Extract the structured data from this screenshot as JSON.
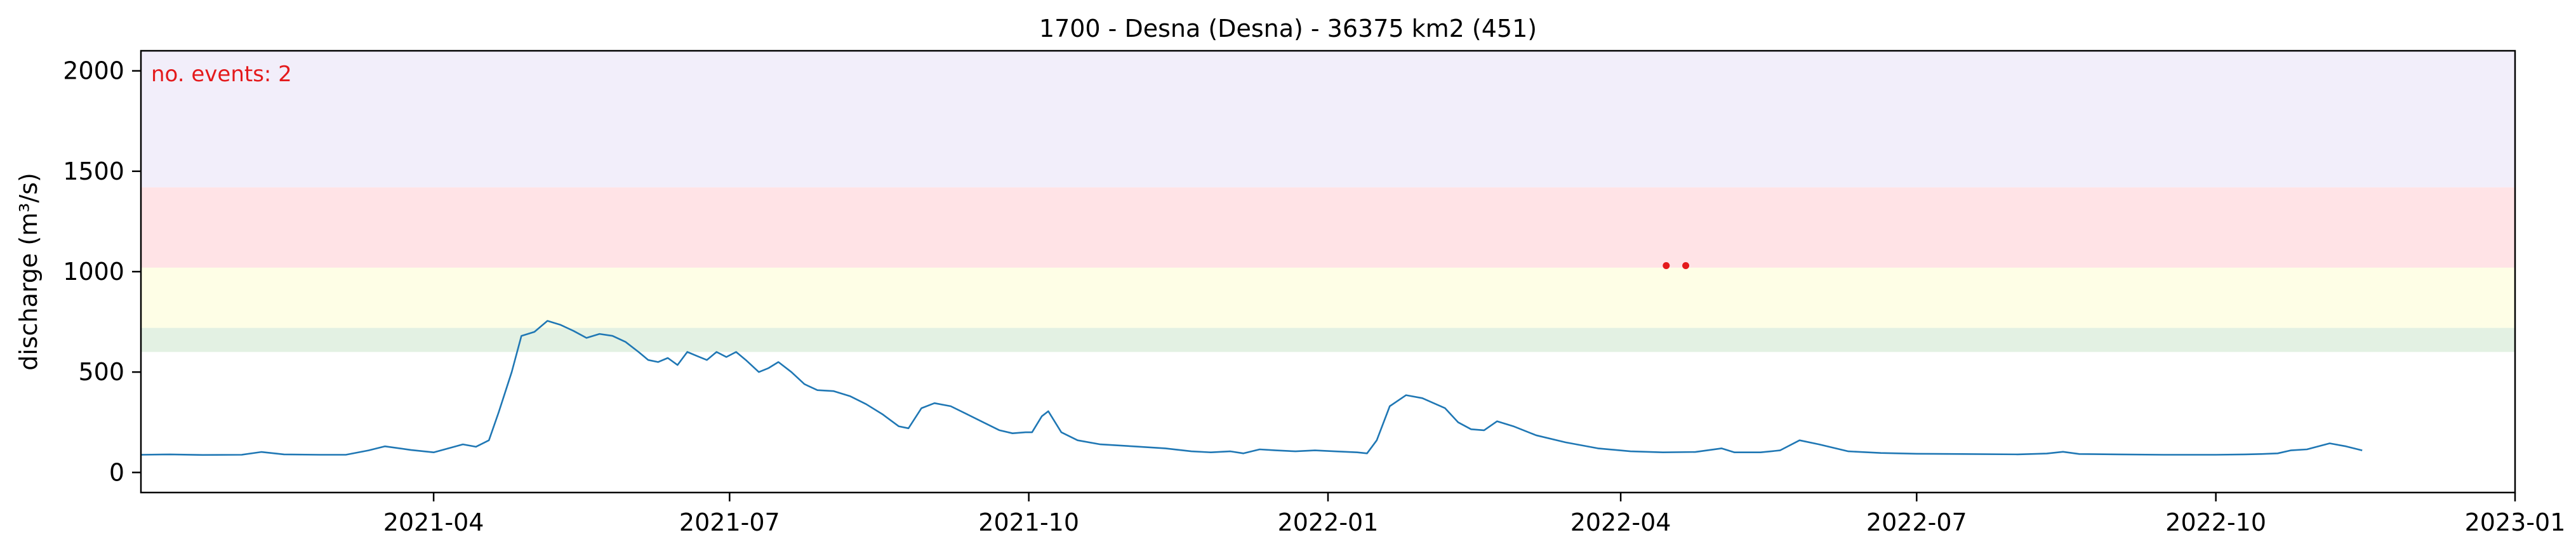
{
  "chart_data": {
    "type": "line",
    "title": "1700 - Desna (Desna) - 36375 km2 (451)",
    "xlabel": "",
    "ylabel": "discharge (m³/s)",
    "xlim": [
      "2021-01-01",
      "2023-01-01"
    ],
    "ylim": [
      -100,
      2100
    ],
    "x_ticks": [
      "2021-04",
      "2021-07",
      "2021-10",
      "2022-01",
      "2022-04",
      "2022-07",
      "2022-10",
      "2023-01"
    ],
    "y_ticks": [
      0,
      500,
      1000,
      1500,
      2000
    ],
    "grid": false,
    "annotation": "no. events: 2",
    "threshold_bands": [
      {
        "from": 600,
        "to": 720,
        "color": "#e3f1e3"
      },
      {
        "from": 720,
        "to": 1020,
        "color": "#fefee6"
      },
      {
        "from": 1020,
        "to": 1420,
        "color": "#ffe3e6"
      },
      {
        "from": 1420,
        "to": 2100,
        "color": "#f2eefa"
      }
    ],
    "series": [
      {
        "color": "#1f77b4",
        "points": [
          [
            "2021-01-01",
            88
          ],
          [
            "2021-01-10",
            90
          ],
          [
            "2021-01-20",
            87
          ],
          [
            "2021-02-01",
            88
          ],
          [
            "2021-02-07",
            102
          ],
          [
            "2021-02-14",
            90
          ],
          [
            "2021-02-25",
            88
          ],
          [
            "2021-03-05",
            88
          ],
          [
            "2021-03-12",
            110
          ],
          [
            "2021-03-17",
            130
          ],
          [
            "2021-03-25",
            112
          ],
          [
            "2021-04-01",
            100
          ],
          [
            "2021-04-06",
            122
          ],
          [
            "2021-04-10",
            140
          ],
          [
            "2021-04-14",
            128
          ],
          [
            "2021-04-18",
            160
          ],
          [
            "2021-04-21",
            300
          ],
          [
            "2021-04-25",
            500
          ],
          [
            "2021-04-28",
            680
          ],
          [
            "2021-05-02",
            700
          ],
          [
            "2021-05-06",
            755
          ],
          [
            "2021-05-10",
            735
          ],
          [
            "2021-05-14",
            705
          ],
          [
            "2021-05-18",
            670
          ],
          [
            "2021-05-22",
            690
          ],
          [
            "2021-05-26",
            680
          ],
          [
            "2021-05-30",
            650
          ],
          [
            "2021-06-03",
            600
          ],
          [
            "2021-06-06",
            560
          ],
          [
            "2021-06-09",
            550
          ],
          [
            "2021-06-12",
            570
          ],
          [
            "2021-06-15",
            535
          ],
          [
            "2021-06-18",
            600
          ],
          [
            "2021-06-21",
            580
          ],
          [
            "2021-06-24",
            560
          ],
          [
            "2021-06-27",
            600
          ],
          [
            "2021-06-30",
            575
          ],
          [
            "2021-07-03",
            600
          ],
          [
            "2021-07-06",
            560
          ],
          [
            "2021-07-10",
            500
          ],
          [
            "2021-07-13",
            520
          ],
          [
            "2021-07-16",
            550
          ],
          [
            "2021-07-20",
            500
          ],
          [
            "2021-07-24",
            440
          ],
          [
            "2021-07-28",
            410
          ],
          [
            "2021-08-02",
            405
          ],
          [
            "2021-08-07",
            380
          ],
          [
            "2021-08-12",
            340
          ],
          [
            "2021-08-17",
            290
          ],
          [
            "2021-08-22",
            230
          ],
          [
            "2021-08-25",
            220
          ],
          [
            "2021-08-29",
            320
          ],
          [
            "2021-09-02",
            345
          ],
          [
            "2021-09-07",
            330
          ],
          [
            "2021-09-12",
            290
          ],
          [
            "2021-09-17",
            250
          ],
          [
            "2021-09-22",
            210
          ],
          [
            "2021-09-26",
            195
          ],
          [
            "2021-09-30",
            200
          ],
          [
            "2021-10-02",
            200
          ],
          [
            "2021-10-05",
            280
          ],
          [
            "2021-10-07",
            305
          ],
          [
            "2021-10-11",
            200
          ],
          [
            "2021-10-16",
            160
          ],
          [
            "2021-10-23",
            140
          ],
          [
            "2021-11-02",
            130
          ],
          [
            "2021-11-12",
            120
          ],
          [
            "2021-11-20",
            105
          ],
          [
            "2021-11-26",
            100
          ],
          [
            "2021-12-02",
            105
          ],
          [
            "2021-12-06",
            95
          ],
          [
            "2021-12-11",
            115
          ],
          [
            "2021-12-16",
            110
          ],
          [
            "2021-12-22",
            105
          ],
          [
            "2021-12-28",
            110
          ],
          [
            "2022-01-03",
            105
          ],
          [
            "2022-01-10",
            100
          ],
          [
            "2022-01-13",
            95
          ],
          [
            "2022-01-16",
            160
          ],
          [
            "2022-01-20",
            330
          ],
          [
            "2022-01-25",
            385
          ],
          [
            "2022-01-30",
            370
          ],
          [
            "2022-02-06",
            320
          ],
          [
            "2022-02-10",
            250
          ],
          [
            "2022-02-14",
            215
          ],
          [
            "2022-02-18",
            210
          ],
          [
            "2022-02-22",
            255
          ],
          [
            "2022-02-27",
            230
          ],
          [
            "2022-03-06",
            185
          ],
          [
            "2022-03-15",
            150
          ],
          [
            "2022-03-25",
            120
          ],
          [
            "2022-04-04",
            105
          ],
          [
            "2022-04-14",
            100
          ],
          [
            "2022-04-24",
            102
          ],
          [
            "2022-05-02",
            120
          ],
          [
            "2022-05-06",
            100
          ],
          [
            "2022-05-14",
            100
          ],
          [
            "2022-05-20",
            110
          ],
          [
            "2022-05-26",
            160
          ],
          [
            "2022-06-01",
            140
          ],
          [
            "2022-06-10",
            105
          ],
          [
            "2022-06-20",
            97
          ],
          [
            "2022-07-01",
            93
          ],
          [
            "2022-07-15",
            92
          ],
          [
            "2022-08-01",
            90
          ],
          [
            "2022-08-10",
            94
          ],
          [
            "2022-08-15",
            103
          ],
          [
            "2022-08-20",
            92
          ],
          [
            "2022-09-01",
            90
          ],
          [
            "2022-09-15",
            88
          ],
          [
            "2022-10-01",
            88
          ],
          [
            "2022-10-10",
            90
          ],
          [
            "2022-10-15",
            92
          ],
          [
            "2022-10-20",
            95
          ],
          [
            "2022-10-24",
            110
          ],
          [
            "2022-10-29",
            115
          ],
          [
            "2022-11-05",
            145
          ],
          [
            "2022-11-10",
            130
          ],
          [
            "2022-11-15",
            110
          ]
        ]
      }
    ],
    "event_markers": [
      [
        "2022-04-15",
        1030
      ],
      [
        "2022-04-21",
        1030
      ]
    ]
  }
}
